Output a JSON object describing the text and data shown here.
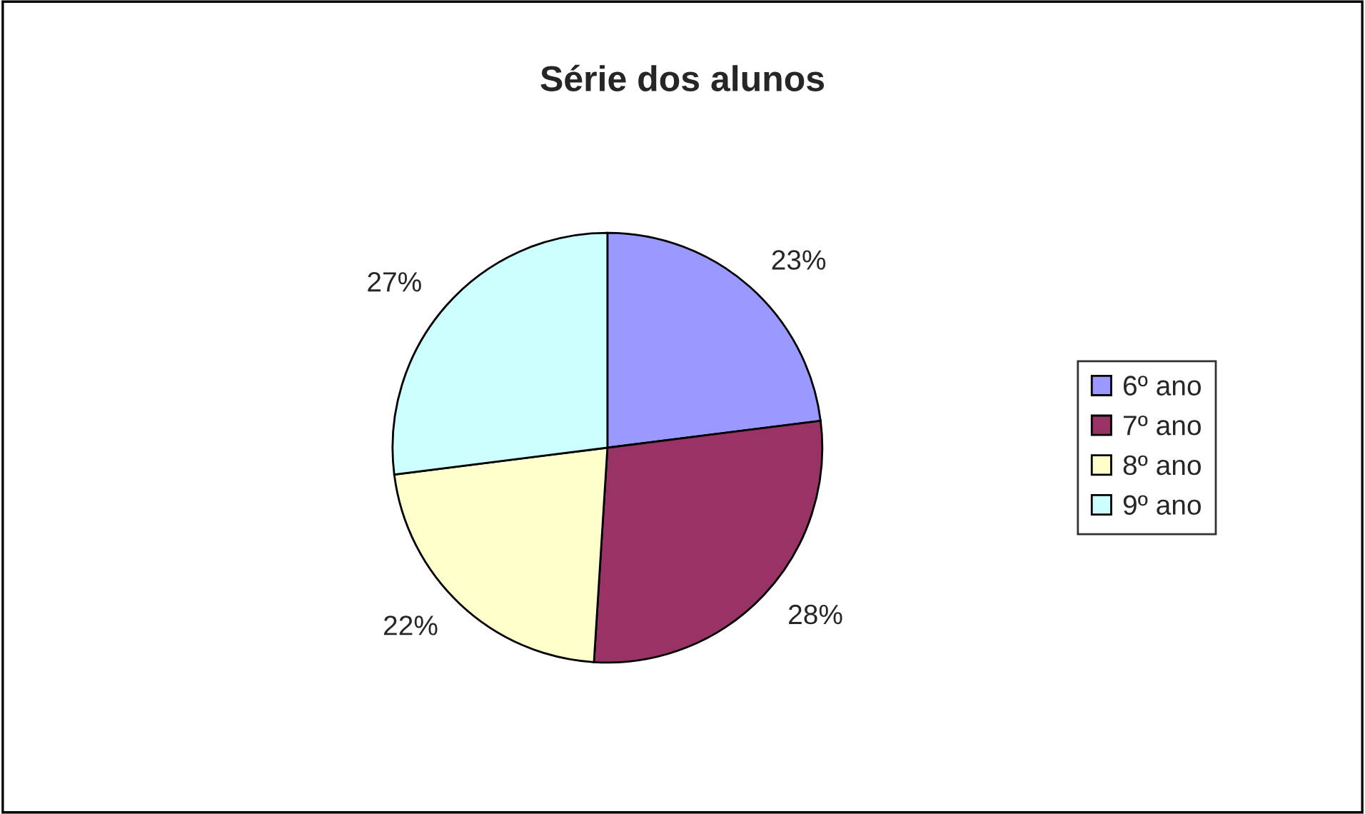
{
  "chart_data": {
    "type": "pie",
    "title": "Série dos alunos",
    "categories": [
      "6º ano",
      "7º ano",
      "8º ano",
      "9º ano"
    ],
    "values": [
      23,
      28,
      22,
      27
    ],
    "value_labels": [
      "23%",
      "28%",
      "22%",
      "27%"
    ],
    "colors": [
      "#9999ff",
      "#993366",
      "#ffffcc",
      "#ccffff"
    ],
    "legend": "right"
  }
}
